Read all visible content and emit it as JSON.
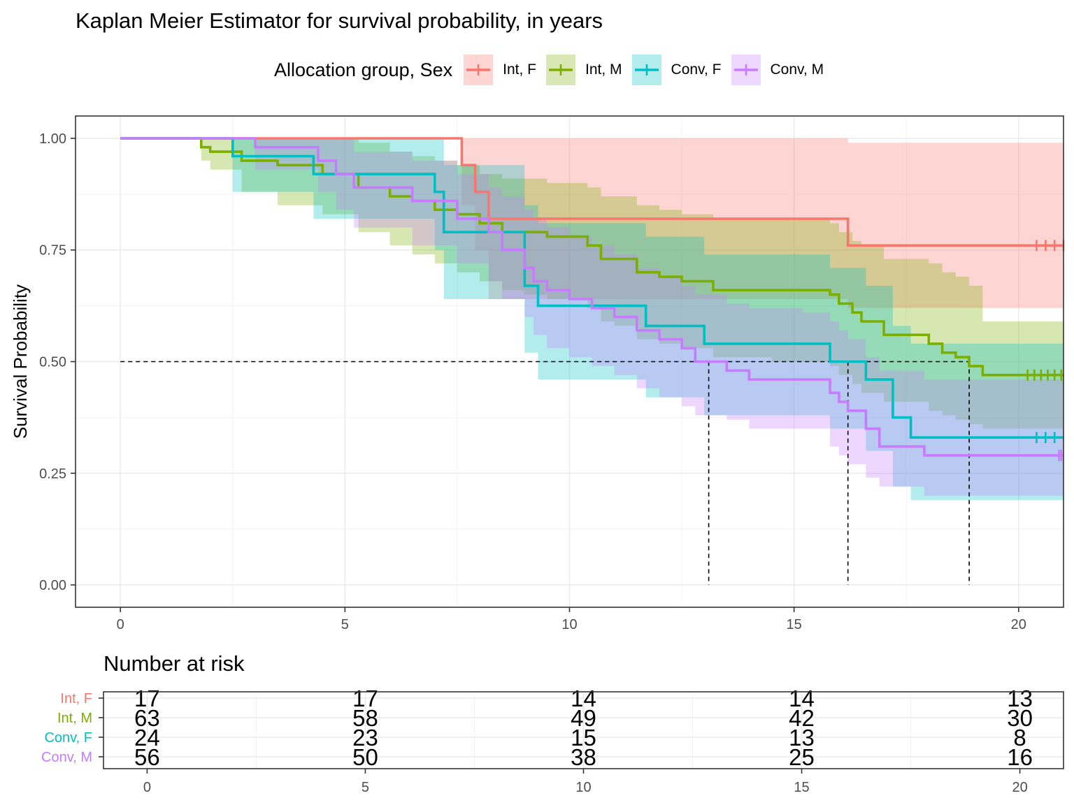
{
  "chart_data": [
    {
      "type": "line",
      "subtype": "step (Kaplan-Meier) with confidence bands",
      "title": "Kaplan Meier Estimator for survival probability, in years",
      "xlabel": "",
      "ylabel": "Survival Probability",
      "xlim": [
        -1,
        21
      ],
      "ylim": [
        -0.05,
        1.05
      ],
      "x_ticks": [
        0,
        5,
        10,
        15,
        20
      ],
      "x_tick_labels": [
        "0",
        "5",
        "10",
        "15",
        "20"
      ],
      "y_ticks": [
        0,
        0.25,
        0.5,
        0.75,
        1
      ],
      "y_tick_labels": [
        "0.00",
        "0.25",
        "0.50",
        "0.75",
        "1.00"
      ],
      "grid": true,
      "legend": {
        "title": "Allocation group, Sex",
        "position": "top"
      },
      "median_line": {
        "y": 0.5,
        "x_ends": [
          13.1,
          16.2,
          18.9
        ]
      },
      "series": [
        {
          "name": "Int, F",
          "color": "#F8766D",
          "x": [
            0,
            7.6,
            7.9,
            8.2,
            16.2,
            21
          ],
          "y": [
            1,
            0.94,
            0.88,
            0.82,
            0.76,
            0.76
          ],
          "lower": [
            1,
            0.85,
            0.75,
            0.64,
            0.62,
            0.62
          ],
          "upper": [
            1,
            1,
            1,
            1,
            0.99,
            0.99
          ],
          "censored_x": [
            20.4,
            20.6,
            20.8,
            21.0
          ]
        },
        {
          "name": "Int, M",
          "color": "#7CAE00",
          "x": [
            0,
            1.8,
            2.0,
            2.7,
            3.5,
            4.5,
            5.3,
            6.0,
            6.5,
            7.0,
            7.5,
            8.0,
            8.5,
            9.0,
            9.5,
            10.4,
            10.7,
            11.0,
            11.5,
            12.0,
            12.5,
            13.2,
            14.5,
            15.8,
            16.0,
            16.3,
            16.5,
            17.0,
            18.0,
            18.3,
            18.6,
            18.9,
            19.2,
            21.0
          ],
          "y": [
            1,
            0.98,
            0.97,
            0.95,
            0.94,
            0.92,
            0.89,
            0.87,
            0.86,
            0.84,
            0.83,
            0.81,
            0.79,
            0.79,
            0.78,
            0.76,
            0.73,
            0.73,
            0.7,
            0.69,
            0.68,
            0.66,
            0.66,
            0.65,
            0.63,
            0.61,
            0.59,
            0.56,
            0.54,
            0.52,
            0.51,
            0.49,
            0.47,
            0.47
          ],
          "lower": [
            1,
            0.95,
            0.93,
            0.88,
            0.85,
            0.83,
            0.79,
            0.76,
            0.74,
            0.72,
            0.7,
            0.68,
            0.66,
            0.65,
            0.64,
            0.62,
            0.59,
            0.58,
            0.55,
            0.54,
            0.53,
            0.51,
            0.5,
            0.49,
            0.47,
            0.45,
            0.43,
            0.41,
            0.39,
            0.38,
            0.37,
            0.36,
            0.35,
            0.35
          ],
          "upper": [
            1,
            1,
            1,
            1,
            1,
            1,
            0.99,
            0.97,
            0.96,
            0.95,
            0.94,
            0.92,
            0.91,
            0.91,
            0.9,
            0.89,
            0.87,
            0.87,
            0.85,
            0.84,
            0.83,
            0.82,
            0.82,
            0.81,
            0.79,
            0.77,
            0.76,
            0.73,
            0.72,
            0.7,
            0.69,
            0.67,
            0.59,
            0.59
          ],
          "censored_x": [
            20.2,
            20.35,
            20.5,
            20.65,
            20.8,
            20.95
          ]
        },
        {
          "name": "Conv, F",
          "color": "#00BFC4",
          "x": [
            0,
            2.5,
            4.3,
            7.0,
            7.2,
            9.0,
            9.3,
            11.7,
            13.0,
            15.8,
            16.6,
            17.2,
            17.6,
            21.0
          ],
          "y": [
            1,
            0.96,
            0.92,
            0.88,
            0.79,
            0.67,
            0.625,
            0.58,
            0.54,
            0.5,
            0.46,
            0.375,
            0.33,
            0.33
          ],
          "lower": [
            1,
            0.88,
            0.82,
            0.75,
            0.64,
            0.52,
            0.46,
            0.42,
            0.38,
            0.35,
            0.3,
            0.22,
            0.19,
            0.19
          ],
          "upper": [
            1,
            1,
            1,
            1,
            0.94,
            0.85,
            0.81,
            0.78,
            0.74,
            0.71,
            0.67,
            0.58,
            0.54,
            0.54
          ],
          "censored_x": [
            20.4,
            20.6,
            20.8
          ]
        },
        {
          "name": "Conv, M",
          "color": "#C77CFF",
          "x": [
            0,
            3.0,
            4.4,
            4.8,
            5.2,
            6.5,
            7.5,
            8.2,
            8.5,
            9.0,
            9.2,
            9.5,
            10.0,
            10.5,
            11.0,
            11.5,
            12.0,
            12.5,
            12.8,
            13.5,
            14.0,
            14.5,
            15.2,
            15.8,
            16.0,
            16.2,
            16.6,
            16.9,
            17.9,
            21.0
          ],
          "y": [
            1,
            0.98,
            0.95,
            0.92,
            0.89,
            0.86,
            0.82,
            0.79,
            0.75,
            0.71,
            0.68,
            0.66,
            0.64,
            0.62,
            0.6,
            0.57,
            0.55,
            0.53,
            0.5,
            0.48,
            0.46,
            0.46,
            0.46,
            0.43,
            0.41,
            0.39,
            0.35,
            0.31,
            0.29,
            0.29
          ],
          "lower": [
            1,
            0.93,
            0.88,
            0.84,
            0.8,
            0.76,
            0.72,
            0.68,
            0.64,
            0.6,
            0.56,
            0.53,
            0.51,
            0.49,
            0.47,
            0.44,
            0.42,
            0.4,
            0.38,
            0.37,
            0.35,
            0.35,
            0.35,
            0.31,
            0.29,
            0.27,
            0.24,
            0.22,
            0.2,
            0.2
          ],
          "upper": [
            1,
            1,
            1,
            1,
            0.97,
            0.95,
            0.92,
            0.89,
            0.87,
            0.84,
            0.82,
            0.8,
            0.78,
            0.76,
            0.74,
            0.71,
            0.69,
            0.67,
            0.65,
            0.63,
            0.62,
            0.62,
            0.61,
            0.59,
            0.57,
            0.55,
            0.51,
            0.48,
            0.46,
            0.46
          ],
          "censored_x": [
            20.9,
            20.95
          ]
        }
      ]
    },
    {
      "type": "table",
      "title": "Number at risk",
      "x_ticks": [
        0,
        5,
        10,
        15,
        20
      ],
      "x_tick_labels": [
        "0",
        "5",
        "10",
        "15",
        "20"
      ],
      "rows": [
        {
          "name": "Int, F",
          "color": "#F8766D",
          "values": [
            "17",
            "17",
            "14",
            "14",
            "13"
          ]
        },
        {
          "name": "Int, M",
          "color": "#7CAE00",
          "values": [
            "63",
            "58",
            "49",
            "42",
            "30"
          ]
        },
        {
          "name": "Conv, F",
          "color": "#00BFC4",
          "values": [
            "24",
            "23",
            "15",
            "13",
            "8"
          ]
        },
        {
          "name": "Conv, M",
          "color": "#C77CFF",
          "values": [
            "56",
            "50",
            "38",
            "25",
            "16"
          ]
        }
      ]
    }
  ]
}
